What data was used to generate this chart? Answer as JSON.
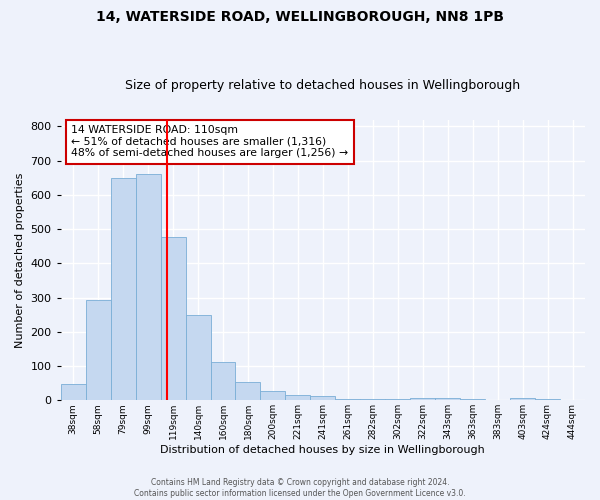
{
  "title1": "14, WATERSIDE ROAD, WELLINGBOROUGH, NN8 1PB",
  "title2": "Size of property relative to detached houses in Wellingborough",
  "xlabel": "Distribution of detached houses by size in Wellingborough",
  "ylabel": "Number of detached properties",
  "bar_labels": [
    "38sqm",
    "58sqm",
    "79sqm",
    "99sqm",
    "119sqm",
    "140sqm",
    "160sqm",
    "180sqm",
    "200sqm",
    "221sqm",
    "241sqm",
    "261sqm",
    "282sqm",
    "302sqm",
    "322sqm",
    "343sqm",
    "363sqm",
    "383sqm",
    "403sqm",
    "424sqm",
    "444sqm"
  ],
  "bar_values": [
    47,
    293,
    650,
    660,
    477,
    250,
    113,
    52,
    27,
    15,
    13,
    5,
    4,
    5,
    8,
    7,
    3,
    2,
    8,
    3,
    0
  ],
  "bar_color": "#c5d8f0",
  "bar_edge_color": "#7aaed6",
  "red_line_x": 3.75,
  "annotation_line1": "14 WATERSIDE ROAD: 110sqm",
  "annotation_line2": "← 51% of detached houses are smaller (1,316)",
  "annotation_line3": "48% of semi-detached houses are larger (1,256) →",
  "annotation_box_color": "#ffffff",
  "annotation_box_edge_color": "#cc0000",
  "footer1": "Contains HM Land Registry data © Crown copyright and database right 2024.",
  "footer2": "Contains public sector information licensed under the Open Government Licence v3.0.",
  "bg_color": "#eef2fb",
  "plot_bg_color": "#eef2fb",
  "ylim": [
    0,
    820
  ],
  "grid_color": "#ffffff",
  "title1_fontsize": 10,
  "title2_fontsize": 9
}
